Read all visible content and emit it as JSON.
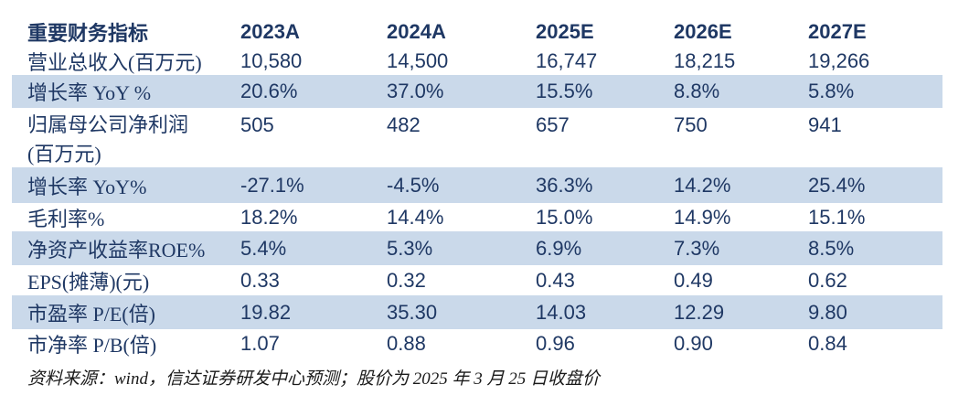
{
  "colors": {
    "navy": "#1F3864",
    "stripe": "#CAD9EA",
    "ink": "#1A1A1A"
  },
  "table": {
    "header": {
      "label": "重要财务指标",
      "columns": [
        "2023A",
        "2024A",
        "2025E",
        "2026E",
        "2027E"
      ]
    },
    "rows": [
      {
        "label": "营业总收入(百万元)",
        "values": [
          "10,580",
          "14,500",
          "16,747",
          "18,215",
          "19,266"
        ],
        "striped": false
      },
      {
        "label": "增长率 YoY %",
        "values": [
          "20.6%",
          "37.0%",
          "15.5%",
          "8.8%",
          "5.8%"
        ],
        "striped": true
      },
      {
        "label": "归属母公司净利润",
        "label2": "(百万元)",
        "values": [
          "505",
          "482",
          "657",
          "750",
          "941"
        ],
        "striped": false
      },
      {
        "label": "增长率 YoY%",
        "values": [
          "-27.1%",
          "-4.5%",
          "36.3%",
          "14.2%",
          "25.4%"
        ],
        "striped": true
      },
      {
        "label": "毛利率%",
        "values": [
          "18.2%",
          "14.4%",
          "15.0%",
          "14.9%",
          "15.1%"
        ],
        "striped": false
      },
      {
        "label": "净资产收益率ROE%",
        "values": [
          "5.4%",
          "5.3%",
          "6.9%",
          "7.3%",
          "8.5%"
        ],
        "striped": true
      },
      {
        "label": "EPS(摊薄)(元)",
        "values": [
          "0.33",
          "0.32",
          "0.43",
          "0.49",
          "0.62"
        ],
        "striped": false
      },
      {
        "label": "市盈率 P/E(倍)",
        "values": [
          "19.82",
          "35.30",
          "14.03",
          "12.29",
          "9.80"
        ],
        "striped": true
      },
      {
        "label": "市净率 P/B(倍)",
        "values": [
          "1.07",
          "0.88",
          "0.96",
          "0.90",
          "0.84"
        ],
        "striped": false
      }
    ]
  },
  "footer": {
    "source": "资料来源：wind，信达证券研发中心预测；股价为 2025 年 3 月 25 日收盘价"
  },
  "chart_data": {
    "type": "table",
    "title": "重要财务指标",
    "categories": [
      "2023A",
      "2024A",
      "2025E",
      "2026E",
      "2027E"
    ],
    "series": [
      {
        "name": "营业总收入(百万元)",
        "values": [
          10580,
          14500,
          16747,
          18215,
          19266
        ]
      },
      {
        "name": "增长率 YoY %",
        "values": [
          20.6,
          37.0,
          15.5,
          8.8,
          5.8
        ]
      },
      {
        "name": "归属母公司净利润(百万元)",
        "values": [
          505,
          482,
          657,
          750,
          941
        ]
      },
      {
        "name": "增长率 YoY%",
        "values": [
          -27.1,
          -4.5,
          36.3,
          14.2,
          25.4
        ]
      },
      {
        "name": "毛利率%",
        "values": [
          18.2,
          14.4,
          15.0,
          14.9,
          15.1
        ]
      },
      {
        "name": "净资产收益率ROE%",
        "values": [
          5.4,
          5.3,
          6.9,
          7.3,
          8.5
        ]
      },
      {
        "name": "EPS(摊薄)(元)",
        "values": [
          0.33,
          0.32,
          0.43,
          0.49,
          0.62
        ]
      },
      {
        "name": "市盈率 P/E(倍)",
        "values": [
          19.82,
          35.3,
          14.03,
          12.29,
          9.8
        ]
      },
      {
        "name": "市净率 P/B(倍)",
        "values": [
          1.07,
          0.88,
          0.96,
          0.9,
          0.84
        ]
      }
    ]
  }
}
